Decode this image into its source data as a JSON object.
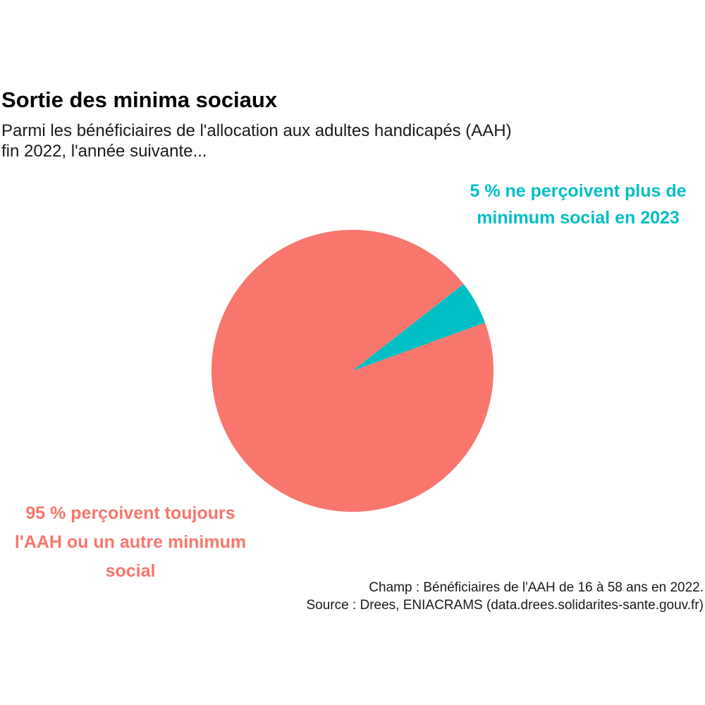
{
  "chart_data": {
    "type": "pie",
    "title": "Sortie des minima sociaux",
    "subtitle_lines": [
      "Parmi les bénéficiaires de l'allocation aux adultes handicapés (AAH)",
      "fin 2022, l'année suivante..."
    ],
    "slices": [
      {
        "value": 95,
        "color": "#F8766D",
        "label_lines": [
          "95 % perçoivent toujours",
          "l'AAH ou un autre minimum",
          "social"
        ]
      },
      {
        "value": 5,
        "color": "#00BFC4",
        "label_lines": [
          "5 % ne perçoivent plus de",
          "minimum social en 2023"
        ]
      }
    ],
    "caption_lines": [
      "Champ : Bénéficiaires de l'AAH de 16 à 58 ans en 2022.",
      "Source : Drees, ENIACRAMS (data.drees.solidarites-sante.gouv.fr)"
    ]
  }
}
